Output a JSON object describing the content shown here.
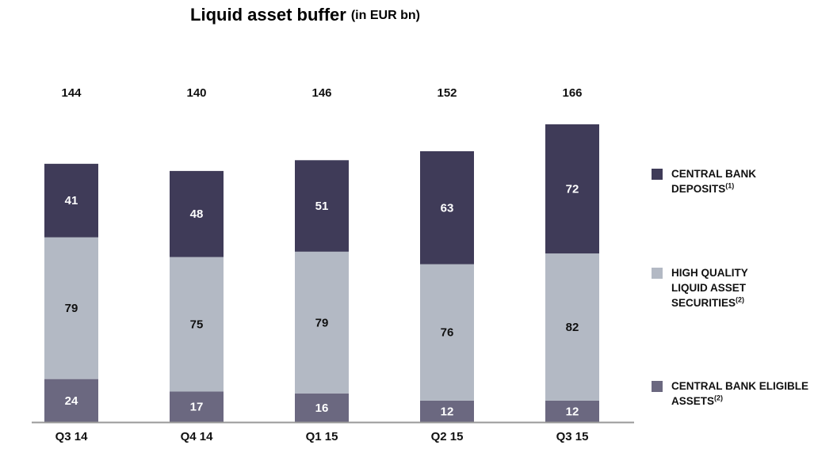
{
  "chart_data": {
    "type": "stacked_bar",
    "title": "Liquid asset buffer",
    "title_unit": "(in EUR bn)",
    "categories": [
      "Q3 14",
      "Q4 14",
      "Q1 15",
      "Q2 15",
      "Q3 15"
    ],
    "totals": [
      144,
      140,
      146,
      152,
      166
    ],
    "series": [
      {
        "name": "CENTRAL BANK ELIGIBLE ASSETS",
        "note": "(2)",
        "color": "#6b6880",
        "label_color": "#ffffff",
        "values": [
          24,
          17,
          16,
          12,
          12
        ]
      },
      {
        "name": "HIGH QUALITY LIQUID ASSET SECURITIES",
        "note": "(2)",
        "color": "#b3b9c4",
        "label_color": "#111111",
        "values": [
          79,
          75,
          79,
          76,
          82
        ]
      },
      {
        "name": "CENTRAL BANK DEPOSITS",
        "note": "(1)",
        "color": "#3f3b58",
        "label_color": "#ffffff",
        "values": [
          41,
          48,
          51,
          63,
          72
        ]
      }
    ]
  }
}
